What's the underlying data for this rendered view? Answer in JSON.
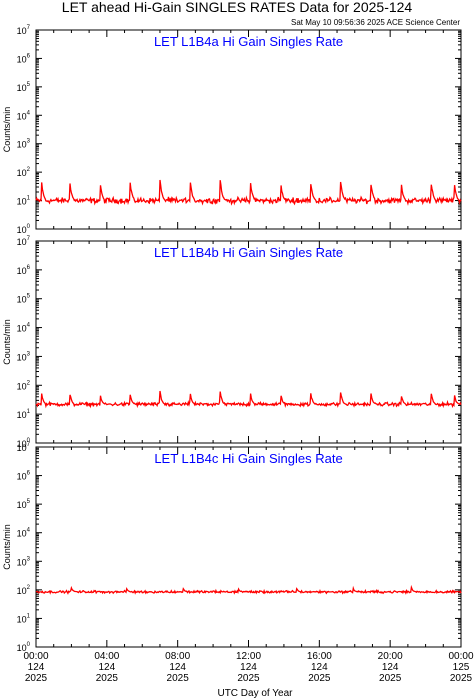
{
  "title": "LET ahead Hi-Gain SINGLES RATES Data for 2025-124",
  "timestamp": "Sat May 10 09:56:36 2025 ACE Science Center",
  "xlabel": "UTC Day of Year",
  "ylabel": "Counts/min",
  "x_ticks": [
    {
      "time": "00:00",
      "doy": "124",
      "year": "2025"
    },
    {
      "time": "04:00",
      "doy": "124",
      "year": "2025"
    },
    {
      "time": "08:00",
      "doy": "124",
      "year": "2025"
    },
    {
      "time": "12:00",
      "doy": "124",
      "year": "2025"
    },
    {
      "time": "16:00",
      "doy": "124",
      "year": "2025"
    },
    {
      "time": "20:00",
      "doy": "124",
      "year": "2025"
    },
    {
      "time": "00:00",
      "doy": "125",
      "year": "2025"
    }
  ],
  "y_tick_labels": [
    "10^0",
    "10^1",
    "10^2",
    "10^3",
    "10^4",
    "10^5",
    "10^6",
    "10^7"
  ],
  "colors": {
    "line": "#ff0000",
    "panel_title": "#0000ff",
    "axis": "#000000"
  },
  "chart_data": [
    {
      "type": "line",
      "title": "LET L1B4a Hi Gain Singles Rate",
      "ylabel": "Counts/min",
      "xlim": [
        0,
        24
      ],
      "ylim": [
        1,
        10000000
      ],
      "yscale": "log",
      "series": [
        {
          "baseline": 10,
          "noise_dex": 0.08,
          "spike_peak": 50,
          "spike_hours": [
            0.3,
            1.9,
            3.6,
            5.3,
            7.0,
            8.7,
            10.4,
            12.1,
            13.8,
            15.5,
            17.2,
            18.9,
            20.6,
            22.3,
            23.6
          ]
        }
      ]
    },
    {
      "type": "line",
      "title": "LET L1B4b Hi Gain Singles Rate",
      "ylabel": "Counts/min",
      "xlim": [
        0,
        24
      ],
      "ylim": [
        1,
        10000000
      ],
      "yscale": "log",
      "series": [
        {
          "baseline": 22,
          "noise_dex": 0.05,
          "spike_peak": 60,
          "spike_hours": [
            0.3,
            1.9,
            3.6,
            5.3,
            7.0,
            8.7,
            10.4,
            12.1,
            13.8,
            15.5,
            17.2,
            18.9,
            20.6,
            22.3,
            23.6
          ]
        }
      ]
    },
    {
      "type": "line",
      "title": "LET L1B4c Hi Gain Singles Rate",
      "ylabel": "Counts/min",
      "xlim": [
        0,
        24
      ],
      "ylim": [
        1,
        10000000
      ],
      "yscale": "log",
      "series": [
        {
          "baseline": 85,
          "noise_dex": 0.035,
          "spike_peak": 120,
          "spike_hours": [
            2.0,
            5.1,
            8.3,
            11.4,
            14.7,
            17.9,
            21.2
          ]
        }
      ]
    }
  ]
}
